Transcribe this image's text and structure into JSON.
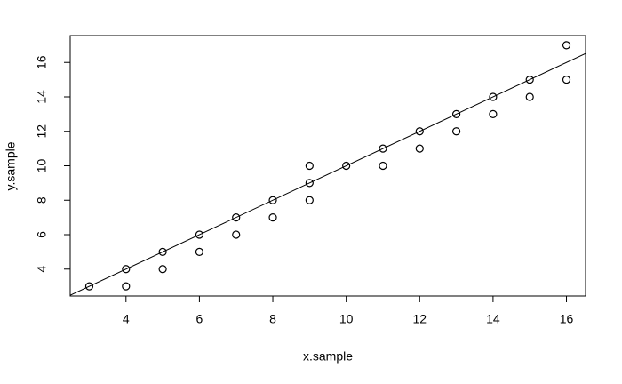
{
  "chart_data": {
    "type": "scatter",
    "x_label": "x.sample",
    "y_label": "y.sample",
    "series": [
      {
        "color": "#000000",
        "x": [
          3,
          4,
          4,
          5,
          5,
          6,
          6,
          7,
          7,
          8,
          8,
          9,
          9,
          9,
          10,
          11,
          11,
          12,
          12,
          13,
          13,
          14,
          14,
          15,
          15,
          16,
          16
        ],
        "values": [
          3,
          3,
          4,
          4,
          5,
          5,
          6,
          6,
          7,
          7,
          8,
          8,
          9,
          10,
          10,
          10,
          11,
          11,
          12,
          12,
          13,
          13,
          14,
          14,
          15,
          15,
          17
        ]
      }
    ],
    "reference_line": {
      "intercept": 0,
      "slope": 1,
      "color": "#000000"
    },
    "xlim": [
      2.48,
      16.52
    ],
    "xticks": [
      4,
      6,
      8,
      10,
      12,
      14,
      16
    ],
    "ylim": [
      2.44,
      17.56
    ],
    "yticks": [
      4,
      6,
      8,
      10,
      12,
      14,
      16
    ],
    "grid": false
  }
}
